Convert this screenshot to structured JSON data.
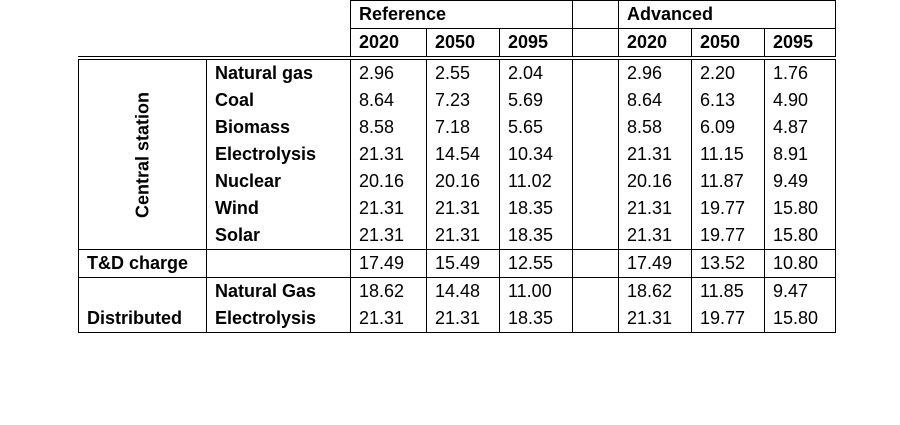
{
  "headers": {
    "reference": "Reference",
    "advanced": "Advanced",
    "years_reference": [
      "2020",
      "2050",
      "2095"
    ],
    "years_advanced": [
      "2020",
      "2050",
      "2095"
    ]
  },
  "groups": {
    "central": "Central station",
    "td": "T&D charge",
    "distributed": "Distributed"
  },
  "rows": [
    {
      "label": "Natural gas",
      "ref": [
        "2.96",
        "2.55",
        "2.04"
      ],
      "adv": [
        "2.96",
        "2.20",
        "1.76"
      ]
    },
    {
      "label": "Coal",
      "ref": [
        "8.64",
        "7.23",
        "5.69"
      ],
      "adv": [
        "8.64",
        "6.13",
        "4.90"
      ]
    },
    {
      "label": "Biomass",
      "ref": [
        "8.58",
        "7.18",
        "5.65"
      ],
      "adv": [
        "8.58",
        "6.09",
        "4.87"
      ]
    },
    {
      "label": "Electrolysis",
      "ref": [
        "21.31",
        "14.54",
        "10.34"
      ],
      "adv": [
        "21.31",
        "11.15",
        "8.91"
      ]
    },
    {
      "label": "Nuclear",
      "ref": [
        "20.16",
        "20.16",
        "11.02"
      ],
      "adv": [
        "20.16",
        "11.87",
        "9.49"
      ]
    },
    {
      "label": "Wind",
      "ref": [
        "21.31",
        "21.31",
        "18.35"
      ],
      "adv": [
        "21.31",
        "19.77",
        "15.80"
      ]
    },
    {
      "label": "Solar",
      "ref": [
        "21.31",
        "21.31",
        "18.35"
      ],
      "adv": [
        "21.31",
        "19.77",
        "15.80"
      ]
    },
    {
      "label": "",
      "ref": [
        "17.49",
        "15.49",
        "12.55"
      ],
      "adv": [
        "17.49",
        "13.52",
        "10.80"
      ]
    },
    {
      "label": "Natural Gas",
      "ref": [
        "18.62",
        "14.48",
        "11.00"
      ],
      "adv": [
        "18.62",
        "11.85",
        "9.47"
      ]
    },
    {
      "label": "Electrolysis",
      "ref": [
        "21.31",
        "21.31",
        "18.35"
      ],
      "adv": [
        "21.31",
        "19.77",
        "15.80"
      ]
    }
  ]
}
